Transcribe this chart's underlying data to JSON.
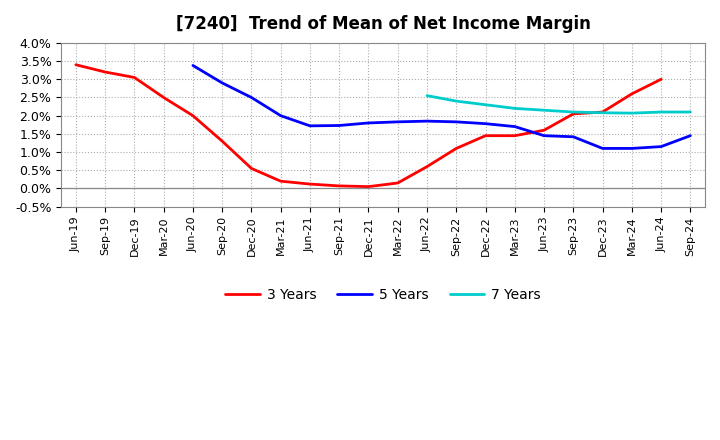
{
  "title": "[7240]  Trend of Mean of Net Income Margin",
  "x_labels": [
    "Jun-19",
    "Sep-19",
    "Dec-19",
    "Mar-20",
    "Jun-20",
    "Sep-20",
    "Dec-20",
    "Mar-21",
    "Jun-21",
    "Sep-21",
    "Dec-21",
    "Mar-22",
    "Jun-22",
    "Sep-22",
    "Dec-22",
    "Mar-23",
    "Jun-23",
    "Sep-23",
    "Dec-23",
    "Mar-24",
    "Jun-24",
    "Sep-24"
  ],
  "series": {
    "3 Years": {
      "color": "#FF0000",
      "data": [
        3.4,
        3.2,
        3.05,
        2.5,
        2.0,
        1.3,
        0.55,
        0.2,
        0.12,
        0.07,
        0.05,
        0.15,
        0.6,
        1.1,
        1.45,
        1.45,
        1.6,
        2.05,
        2.1,
        2.6,
        3.0,
        null
      ]
    },
    "5 Years": {
      "color": "#0000FF",
      "data": [
        null,
        null,
        null,
        null,
        3.38,
        2.9,
        2.5,
        2.0,
        1.72,
        1.73,
        1.8,
        1.83,
        1.85,
        1.83,
        1.78,
        1.7,
        1.45,
        1.42,
        1.1,
        1.1,
        1.15,
        1.45
      ]
    },
    "7 Years": {
      "color": "#00CCCC",
      "data": [
        null,
        null,
        null,
        null,
        null,
        null,
        null,
        null,
        null,
        null,
        null,
        null,
        2.55,
        2.4,
        2.3,
        2.2,
        2.15,
        2.1,
        2.08,
        2.07,
        2.1,
        2.1
      ]
    },
    "10 Years": {
      "color": "#008000",
      "data": [
        null,
        null,
        null,
        null,
        null,
        null,
        null,
        null,
        null,
        null,
        null,
        null,
        null,
        null,
        null,
        null,
        null,
        null,
        null,
        null,
        null,
        null
      ]
    }
  },
  "ylim": [
    -0.5,
    4.0
  ],
  "ytick_vals": [
    -0.5,
    0.0,
    0.5,
    1.0,
    1.5,
    2.0,
    2.5,
    3.0,
    3.5,
    4.0
  ],
  "ytick_labels": [
    "-0.5%",
    "0.0%",
    "0.5%",
    "1.0%",
    "1.5%",
    "2.0%",
    "2.5%",
    "3.0%",
    "3.5%",
    "4.0%"
  ],
  "background_color": "#FFFFFF",
  "grid_color": "#999999"
}
